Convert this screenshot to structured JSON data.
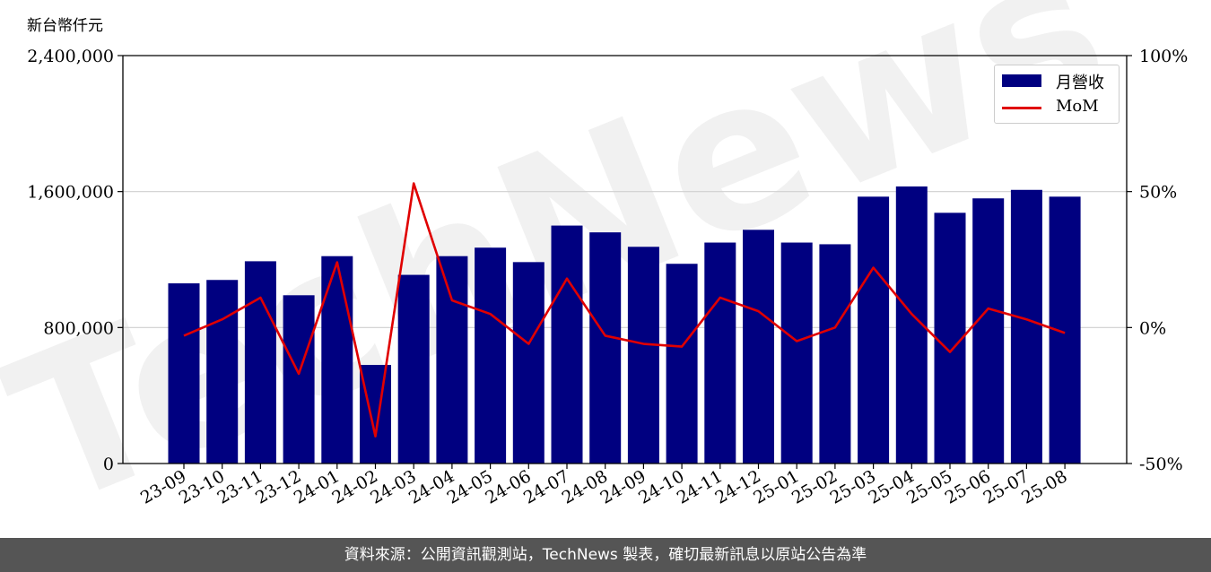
{
  "chart_data": {
    "type": "bar",
    "ylabel": "新台幣仟元",
    "categories": [
      "23-09",
      "23-10",
      "23-11",
      "23-12",
      "24-01",
      "24-02",
      "24-03",
      "24-04",
      "24-05",
      "24-06",
      "24-07",
      "24-08",
      "24-09",
      "24-10",
      "24-11",
      "24-12",
      "25-01",
      "25-02",
      "25-03",
      "25-04",
      "25-05",
      "25-06",
      "25-07",
      "25-08"
    ],
    "series": [
      {
        "name": "月營收",
        "type": "bar",
        "axis": "left",
        "color": "#000080",
        "values": [
          1060000,
          1080000,
          1190000,
          990000,
          1220000,
          580000,
          1110000,
          1220000,
          1270000,
          1185000,
          1400000,
          1360000,
          1275000,
          1175000,
          1300000,
          1375000,
          1300000,
          1290000,
          1570000,
          1630000,
          1475000,
          1560000,
          1610000,
          1570000
        ]
      },
      {
        "name": "MoM",
        "type": "line",
        "axis": "right",
        "color": "#e00000",
        "values": [
          -3,
          3,
          11,
          -17,
          24,
          -40,
          53,
          10,
          5,
          -6,
          18,
          -3,
          -6,
          -7,
          11,
          6,
          -5,
          0,
          22,
          5,
          -9,
          7,
          3,
          -2
        ]
      }
    ],
    "ylim": [
      0,
      2400000
    ],
    "y2lim": [
      -50,
      100
    ],
    "yticks": [
      "0",
      "800,000",
      "1,600,000",
      "2,400,000"
    ],
    "y2ticks": [
      "-50%",
      "0%",
      "50%",
      "100%"
    ],
    "grid": "horizontal",
    "legend": "top-right"
  },
  "watermark": "TechNews",
  "footer": {
    "source_text": "資料來源：公開資訊觀測站，TechNews 製表，確切最新訊息以原站公告為準"
  }
}
